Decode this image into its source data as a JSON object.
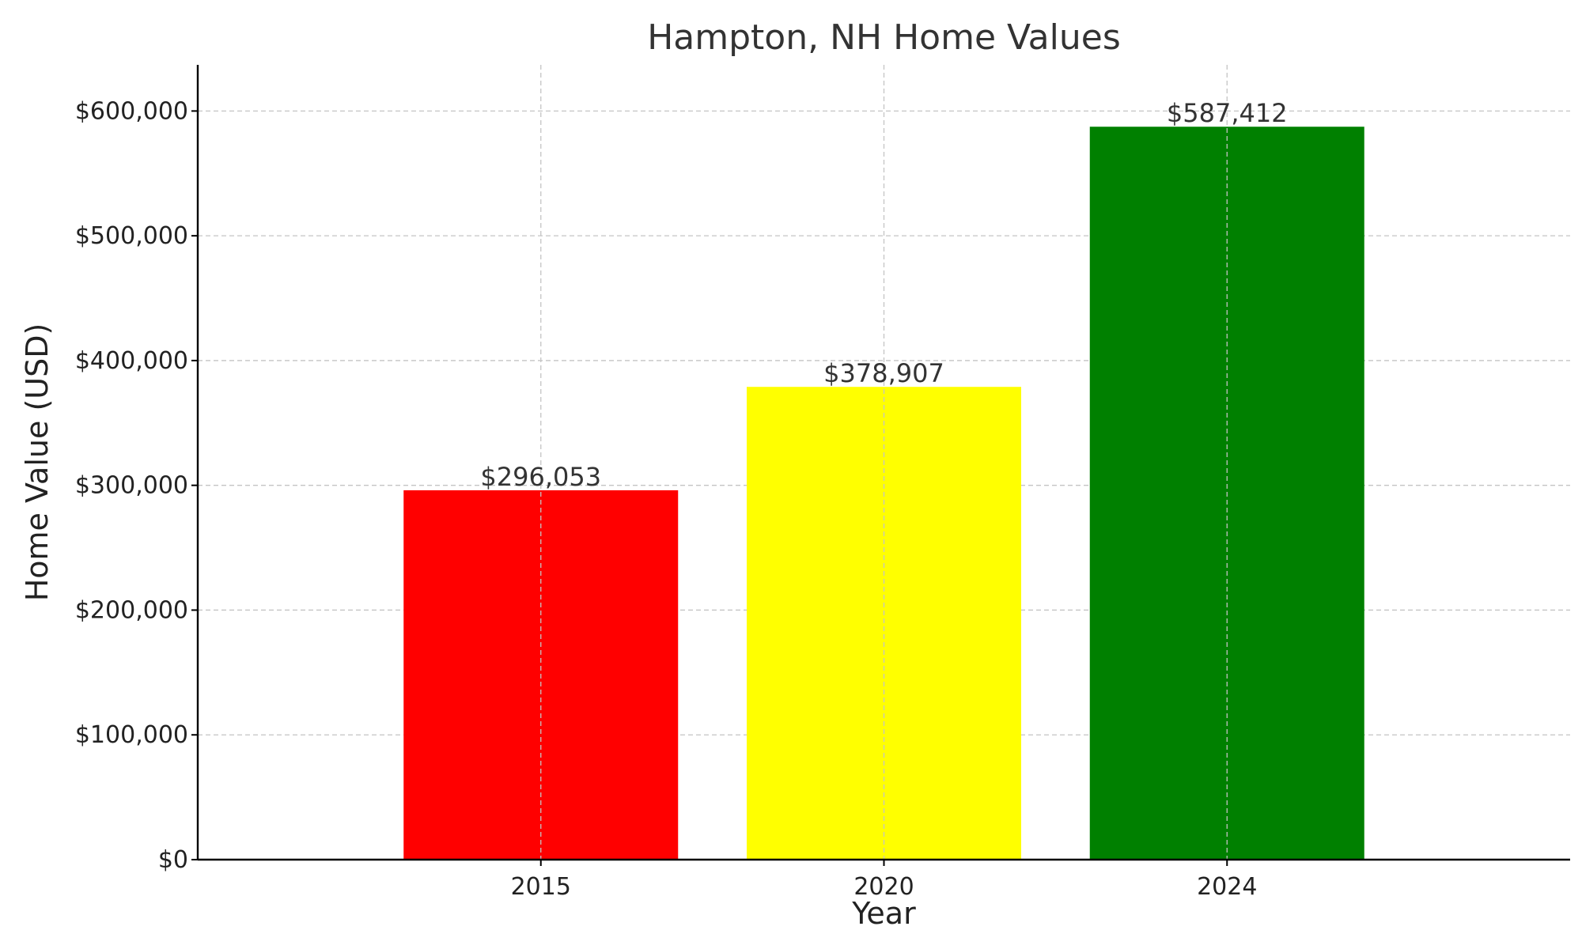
{
  "chart_data": {
    "type": "bar",
    "title": "Hampton, NH Home Values",
    "xlabel": "Year",
    "ylabel": "Home Value (USD)",
    "categories": [
      "2015",
      "2020",
      "2024"
    ],
    "values": [
      296053,
      378907,
      587412
    ],
    "value_labels": [
      "$296,053",
      "$378,907",
      "$587,412"
    ],
    "bar_colors": [
      "#ff0000",
      "#ffff00",
      "#008000"
    ],
    "ylim": [
      0,
      637000
    ],
    "y_ticks": [
      0,
      100000,
      200000,
      300000,
      400000,
      500000,
      600000
    ],
    "y_tick_labels": [
      "$0",
      "$100,000",
      "$200,000",
      "$300,000",
      "$400,000",
      "$500,000",
      "$600,000"
    ],
    "grid": true,
    "legend": false
  }
}
